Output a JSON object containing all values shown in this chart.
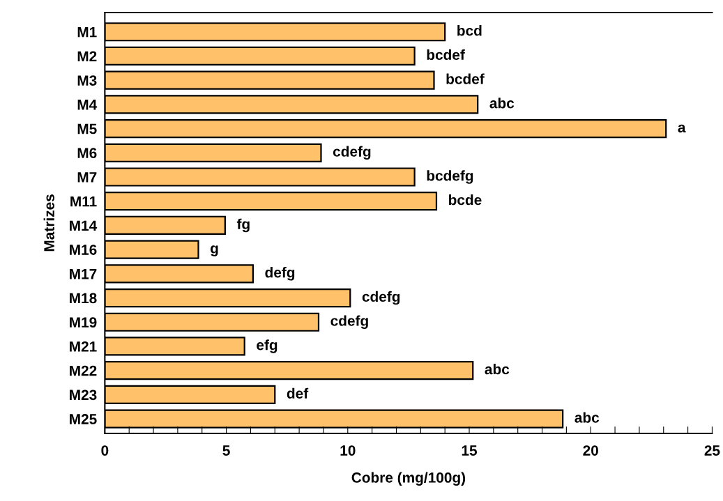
{
  "chart_data": {
    "type": "bar",
    "orientation": "horizontal",
    "xlabel": "Cobre (mg/100g)",
    "ylabel": "Matrizes",
    "categories": [
      "M1",
      "M2",
      "M3",
      "M4",
      "M5",
      "M6",
      "M7",
      "M11",
      "M14",
      "M16",
      "M17",
      "M18",
      "M19",
      "M21",
      "M22",
      "M23",
      "M25"
    ],
    "values": [
      14.0,
      12.75,
      13.55,
      15.35,
      23.1,
      8.9,
      12.75,
      13.65,
      4.95,
      3.85,
      6.1,
      10.1,
      8.8,
      5.75,
      15.15,
      7.0,
      18.85
    ],
    "value_labels": [
      "bcd",
      "bcdef",
      "bcdef",
      "abc",
      "a",
      "cdefg",
      "bcdefg",
      "bcde",
      "fg",
      "g",
      "defg",
      "cdefg",
      "cdefg",
      "efg",
      "abc",
      "def",
      "abc"
    ],
    "color": "#ffc26b",
    "xlim": [
      0,
      25
    ],
    "xticks": [
      0,
      {
        "value": 1,
        "label": null
      },
      {
        "value": 2,
        "label": null
      },
      {
        "value": 3,
        "label": null
      },
      {
        "value": 4,
        "label": null
      },
      5,
      {
        "value": 6,
        "label": null
      },
      {
        "value": 7,
        "label": null
      },
      {
        "value": 8,
        "label": null
      },
      {
        "value": 9,
        "label": null
      },
      10,
      {
        "value": 11,
        "label": null
      },
      {
        "value": 12,
        "label": null
      },
      {
        "value": 13,
        "label": null
      },
      {
        "value": 14,
        "label": null
      },
      15,
      {
        "value": 16,
        "label": null
      },
      {
        "value": 17,
        "label": null
      },
      {
        "value": 18,
        "label": null
      },
      {
        "value": 19,
        "label": null
      },
      20,
      {
        "value": 21,
        "label": null
      },
      {
        "value": 22,
        "label": null
      },
      {
        "value": 23,
        "label": null
      },
      {
        "value": 24,
        "label": null
      },
      25
    ],
    "grid": false,
    "legend": false
  }
}
